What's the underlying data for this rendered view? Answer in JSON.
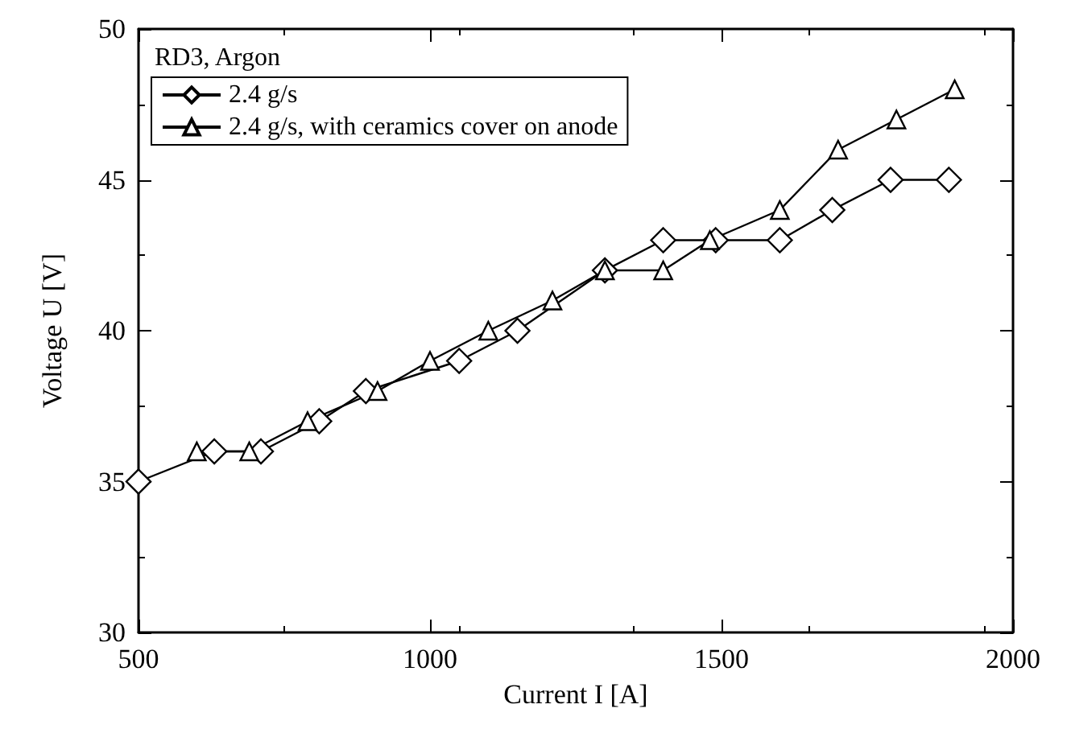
{
  "chart_data": {
    "type": "line",
    "xlabel": "Current I [A]",
    "ylabel": "Voltage U [V]",
    "legend_title": "RD3, Argon",
    "legend": "top left",
    "grid": false,
    "xlim": [
      500,
      2000
    ],
    "xticks": [
      500,
      1000,
      1500,
      2000
    ],
    "ylim": [
      30,
      50
    ],
    "yticks": [
      30,
      35,
      40,
      45,
      50
    ],
    "series": [
      {
        "name": "2.4 g/s",
        "color": "#000000",
        "marker": "diamond",
        "x": [
          500,
          630,
          710,
          810,
          890,
          1050,
          1150,
          1300,
          1400,
          1490,
          1600,
          1690,
          1790,
          1890
        ],
        "values": [
          35,
          36,
          36,
          37,
          38,
          39,
          40,
          42,
          43,
          43,
          43,
          44,
          45,
          45
        ]
      },
      {
        "name": "2.4 g/s, with ceramics cover on anode",
        "color": "#000000",
        "marker": "triangle",
        "x": [
          600,
          690,
          790,
          910,
          1000,
          1100,
          1210,
          1300,
          1400,
          1480,
          1600,
          1700,
          1800,
          1900
        ],
        "values": [
          36,
          36,
          37,
          38,
          39,
          40,
          41,
          42,
          42,
          43,
          44,
          46,
          47,
          48
        ]
      }
    ]
  }
}
